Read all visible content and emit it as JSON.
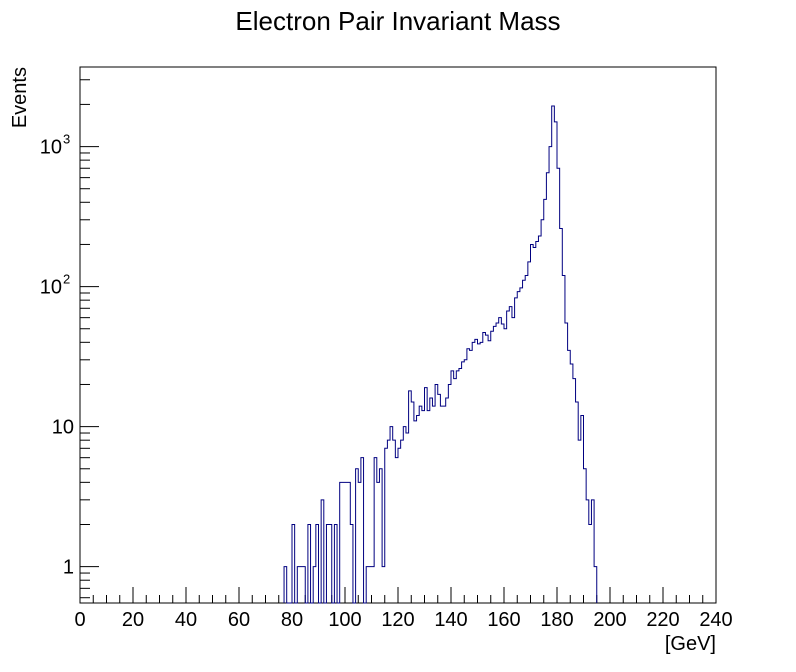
{
  "chart_data": {
    "type": "histogram",
    "title": "Electron Pair Invariant Mass",
    "xlabel": "[GeV]",
    "ylabel": "Events",
    "xlim": [
      0,
      240
    ],
    "ylim": [
      0.55,
      3700
    ],
    "yscale": "log",
    "bin_width": 1,
    "bin_start": 77,
    "grid": false,
    "legend": "none",
    "x_ticks": [
      "0",
      "20",
      "40",
      "60",
      "80",
      "100",
      "120",
      "140",
      "160",
      "180",
      "200",
      "220",
      "240"
    ],
    "y_ticks": [
      {
        "value": 1,
        "label": "1"
      },
      {
        "value": 10,
        "label": "10"
      },
      {
        "value": 100,
        "label": "10",
        "sup": "2"
      },
      {
        "value": 1000,
        "label": "10",
        "sup": "3"
      }
    ],
    "line_color": "#000080",
    "values": [
      1,
      0,
      0,
      2,
      0,
      1,
      1,
      1,
      0,
      2,
      0,
      1,
      2,
      0,
      3,
      0,
      2,
      2,
      0,
      2,
      0,
      4,
      4,
      4,
      4,
      2,
      0,
      5,
      4,
      6,
      0,
      1,
      1,
      1,
      6,
      4,
      5,
      1,
      7,
      8,
      10,
      8,
      6,
      7,
      8,
      10,
      9,
      18,
      15,
      11,
      12,
      14,
      13,
      19,
      13,
      16,
      14,
      20,
      17,
      14,
      14,
      16,
      20,
      25,
      22,
      25,
      26,
      29,
      30,
      36,
      35,
      40,
      42,
      39,
      40,
      47,
      45,
      41,
      48,
      52,
      55,
      60,
      54,
      50,
      67,
      72,
      60,
      83,
      92,
      98,
      111,
      120,
      150,
      200,
      190,
      210,
      230,
      300,
      420,
      650,
      1000,
      1950,
      1500,
      700,
      260,
      120,
      55,
      35,
      28,
      22,
      15,
      8,
      12,
      5,
      3,
      2,
      3,
      1
    ]
  }
}
